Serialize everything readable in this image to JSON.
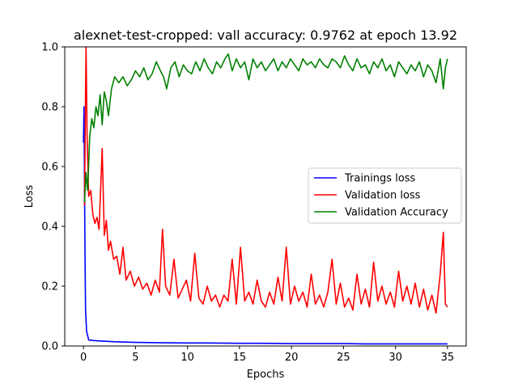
{
  "chart_data": {
    "type": "line",
    "title": "alexnet-test-cropped: vall accuracy: 0.9762 at epoch 13.92",
    "xlabel": "Epochs",
    "ylabel": "Loss",
    "xlim": [
      -1.8,
      36.8
    ],
    "ylim": [
      0,
      1
    ],
    "xticks": [
      0,
      5,
      10,
      15,
      20,
      25,
      30,
      35
    ],
    "yticks": [
      0.0,
      0.2,
      0.4,
      0.6,
      0.8,
      1.0
    ],
    "xtick_labels": [
      "0",
      "5",
      "10",
      "15",
      "20",
      "25",
      "30",
      "35"
    ],
    "ytick_labels": [
      "0.0",
      "0.2",
      "0.4",
      "0.6",
      "0.8",
      "1.0"
    ],
    "grid": false,
    "legend_position": "center-right",
    "series": [
      {
        "name": "Trainings loss",
        "color": "#0000ff",
        "x": [
          0,
          0.05,
          0.1,
          0.15,
          0.2,
          0.3,
          0.5,
          1,
          2,
          3,
          5,
          7,
          10,
          12,
          15,
          17,
          20,
          22,
          25,
          27,
          30,
          32,
          34,
          35
        ],
        "y": [
          0.68,
          0.8,
          0.55,
          0.3,
          0.12,
          0.05,
          0.02,
          0.018,
          0.016,
          0.014,
          0.012,
          0.011,
          0.01,
          0.01,
          0.009,
          0.009,
          0.008,
          0.008,
          0.008,
          0.007,
          0.007,
          0.007,
          0.007,
          0.007
        ]
      },
      {
        "name": "Validation loss",
        "color": "#ff0000",
        "x": [
          0.1,
          0.2,
          0.25,
          0.35,
          0.5,
          0.7,
          0.9,
          1.1,
          1.3,
          1.5,
          1.8,
          2.0,
          2.2,
          2.4,
          2.6,
          2.9,
          3.2,
          3.5,
          3.8,
          4.1,
          4.5,
          4.9,
          5.3,
          5.7,
          6.1,
          6.5,
          6.9,
          7.3,
          7.6,
          7.9,
          8.3,
          8.7,
          9.1,
          9.5,
          9.9,
          10.3,
          10.7,
          11.1,
          11.5,
          11.9,
          12.3,
          12.7,
          13.1,
          13.5,
          13.9,
          14.3,
          14.7,
          15.1,
          15.5,
          15.9,
          16.3,
          16.7,
          17.1,
          17.5,
          17.9,
          18.3,
          18.7,
          19.1,
          19.5,
          19.9,
          20.3,
          20.7,
          21.1,
          21.5,
          21.9,
          22.3,
          22.7,
          23.1,
          23.5,
          23.9,
          24.3,
          24.7,
          25.1,
          25.5,
          25.9,
          26.3,
          26.7,
          27.1,
          27.5,
          27.9,
          28.3,
          28.7,
          29.1,
          29.5,
          29.9,
          30.3,
          30.7,
          31.1,
          31.5,
          31.9,
          32.3,
          32.7,
          33.1,
          33.5,
          33.9,
          34.3,
          34.6,
          34.8,
          35.0
        ],
        "y": [
          0.47,
          0.85,
          1.0,
          0.7,
          0.5,
          0.52,
          0.44,
          0.41,
          0.43,
          0.39,
          0.66,
          0.37,
          0.42,
          0.32,
          0.35,
          0.29,
          0.3,
          0.24,
          0.33,
          0.22,
          0.25,
          0.2,
          0.23,
          0.19,
          0.21,
          0.17,
          0.22,
          0.18,
          0.39,
          0.2,
          0.17,
          0.29,
          0.16,
          0.19,
          0.22,
          0.15,
          0.31,
          0.16,
          0.14,
          0.2,
          0.15,
          0.17,
          0.13,
          0.17,
          0.15,
          0.29,
          0.14,
          0.33,
          0.15,
          0.18,
          0.14,
          0.22,
          0.15,
          0.13,
          0.18,
          0.14,
          0.23,
          0.15,
          0.33,
          0.14,
          0.2,
          0.15,
          0.18,
          0.13,
          0.24,
          0.14,
          0.17,
          0.13,
          0.18,
          0.29,
          0.14,
          0.21,
          0.13,
          0.16,
          0.12,
          0.24,
          0.14,
          0.19,
          0.13,
          0.28,
          0.15,
          0.2,
          0.14,
          0.18,
          0.13,
          0.25,
          0.15,
          0.2,
          0.14,
          0.21,
          0.13,
          0.19,
          0.12,
          0.17,
          0.11,
          0.24,
          0.38,
          0.14,
          0.13
        ]
      },
      {
        "name": "Validation Accuracy",
        "color": "#008000",
        "x": [
          0.1,
          0.25,
          0.4,
          0.6,
          0.8,
          1.0,
          1.2,
          1.4,
          1.6,
          1.8,
          2.0,
          2.2,
          2.4,
          2.7,
          3.0,
          3.4,
          3.8,
          4.2,
          4.6,
          5.0,
          5.4,
          5.8,
          6.2,
          6.6,
          7.0,
          7.4,
          7.7,
          8.0,
          8.4,
          8.8,
          9.2,
          9.6,
          10.0,
          10.4,
          10.8,
          11.2,
          11.6,
          12.0,
          12.4,
          12.8,
          13.2,
          13.6,
          13.92,
          14.3,
          14.7,
          15.1,
          15.5,
          15.9,
          16.3,
          16.7,
          17.1,
          17.5,
          17.9,
          18.3,
          18.7,
          19.1,
          19.5,
          19.9,
          20.3,
          20.7,
          21.1,
          21.5,
          21.9,
          22.3,
          22.7,
          23.1,
          23.5,
          23.9,
          24.3,
          24.7,
          25.1,
          25.5,
          25.9,
          26.3,
          26.7,
          27.1,
          27.5,
          27.9,
          28.3,
          28.7,
          29.1,
          29.5,
          29.9,
          30.3,
          30.7,
          31.1,
          31.5,
          31.9,
          32.3,
          32.7,
          33.1,
          33.5,
          33.9,
          34.3,
          34.6,
          34.8,
          35.0
        ],
        "y": [
          0.48,
          0.58,
          0.52,
          0.7,
          0.76,
          0.73,
          0.8,
          0.77,
          0.84,
          0.74,
          0.85,
          0.82,
          0.77,
          0.86,
          0.9,
          0.88,
          0.9,
          0.87,
          0.89,
          0.92,
          0.9,
          0.93,
          0.89,
          0.91,
          0.95,
          0.92,
          0.9,
          0.86,
          0.93,
          0.95,
          0.9,
          0.94,
          0.92,
          0.91,
          0.95,
          0.92,
          0.96,
          0.93,
          0.91,
          0.95,
          0.93,
          0.96,
          0.9762,
          0.92,
          0.96,
          0.93,
          0.95,
          0.89,
          0.96,
          0.93,
          0.95,
          0.92,
          0.94,
          0.96,
          0.92,
          0.95,
          0.93,
          0.96,
          0.94,
          0.92,
          0.96,
          0.94,
          0.95,
          0.93,
          0.96,
          0.94,
          0.93,
          0.96,
          0.95,
          0.93,
          0.97,
          0.94,
          0.92,
          0.96,
          0.93,
          0.94,
          0.91,
          0.95,
          0.93,
          0.96,
          0.92,
          0.94,
          0.9,
          0.95,
          0.93,
          0.91,
          0.94,
          0.92,
          0.95,
          0.9,
          0.94,
          0.92,
          0.88,
          0.96,
          0.86,
          0.93,
          0.96
        ]
      }
    ]
  }
}
